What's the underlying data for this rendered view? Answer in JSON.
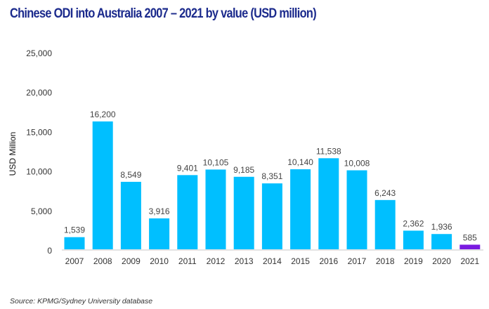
{
  "chart_data": {
    "type": "bar",
    "title": "Chinese ODI into Australia 2007 – 2021 by value (USD million)",
    "xlabel": "",
    "ylabel": "USD Million",
    "ylim": [
      0,
      25000
    ],
    "yticks": [
      0,
      5000,
      10000,
      15000,
      20000,
      25000
    ],
    "ytick_labels": [
      "0",
      "5,000",
      "10,000",
      "15,000",
      "20,000",
      "25,000"
    ],
    "categories": [
      "2007",
      "2008",
      "2009",
      "2010",
      "2011",
      "2012",
      "2013",
      "2014",
      "2015",
      "2016",
      "2017",
      "2018",
      "2019",
      "2020",
      "2021"
    ],
    "values": [
      1539,
      16200,
      8549,
      3916,
      9401,
      10105,
      9185,
      8351,
      10140,
      11538,
      10008,
      6243,
      2362,
      1936,
      585
    ],
    "data_labels": [
      "1,539",
      "16,200",
      "8,549",
      "3,916",
      "9,401",
      "10,105",
      "9,185",
      "8,351",
      "10,140",
      "11,538",
      "10,008",
      "6,243",
      "2,362",
      "1,936",
      "585"
    ],
    "grid": false,
    "legend": "none",
    "colors": {
      "bar": "#00bfff",
      "highlight": "#7a1be0",
      "title": "#1b2a8c"
    },
    "highlight_category": "2021"
  },
  "source": "Source: KPMG/Sydney University database"
}
